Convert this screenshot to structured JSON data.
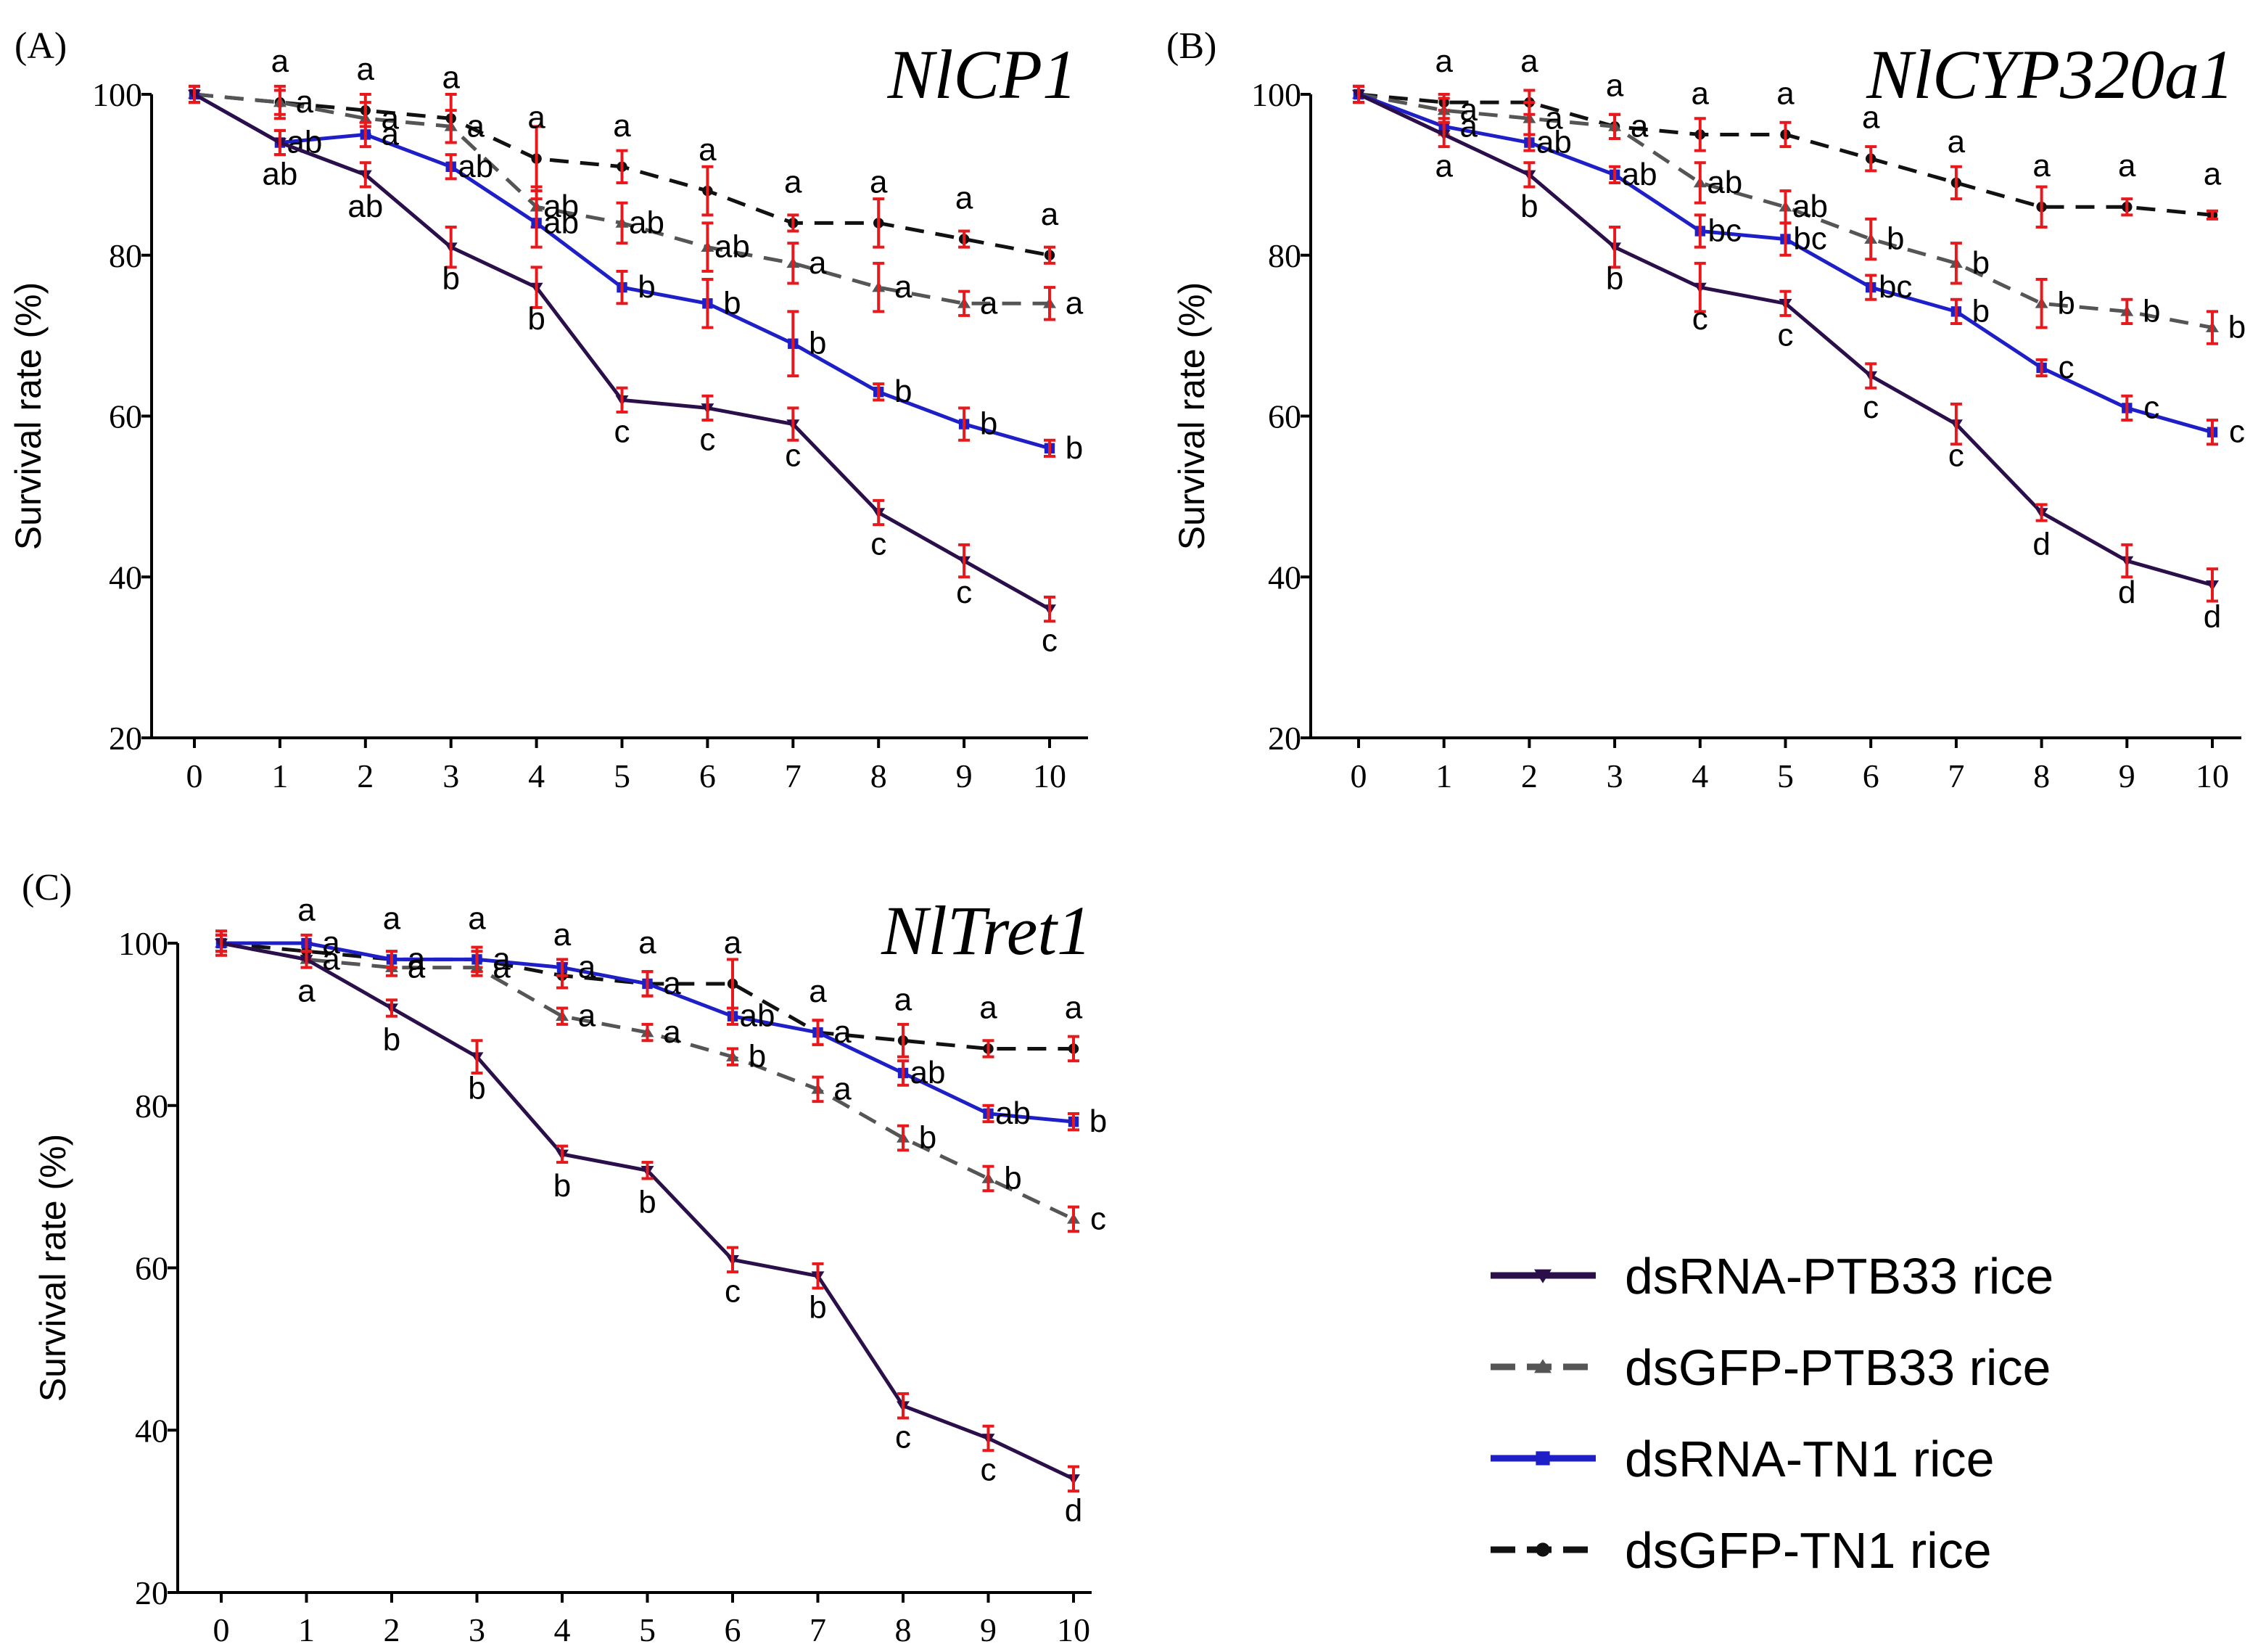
{
  "series_style": {
    "dsRNA-PTB33": {
      "color": "#2a0f4a",
      "dash": "",
      "marker": "triangle-down"
    },
    "dsGFP-PTB33": {
      "color": "#555555",
      "dash": "26,16",
      "marker": "triangle-up"
    },
    "dsRNA-TN1": {
      "color": "#1f1fc8",
      "dash": "",
      "marker": "square"
    },
    "dsGFP-TN1": {
      "color": "#111111",
      "dash": "26,16",
      "marker": "circle"
    }
  },
  "error_bar_color": "#e8191c",
  "legend": {
    "items": [
      {
        "key": "dsRNA-PTB33",
        "label": "dsRNA-PTB33 rice"
      },
      {
        "key": "dsGFP-PTB33",
        "label": "dsGFP-PTB33 rice"
      },
      {
        "key": "dsRNA-TN1",
        "label": "dsRNA-TN1 rice"
      },
      {
        "key": "dsGFP-TN1",
        "label": "dsGFP-TN1 rice"
      }
    ]
  },
  "chart_data": [
    {
      "type": "line",
      "panel": "(A)",
      "title": "NlCP1",
      "ylabel": "Survival rate (%)",
      "xlabel": "",
      "x": [
        0,
        1,
        2,
        3,
        4,
        5,
        6,
        7,
        8,
        9,
        10
      ],
      "xticks": [
        "0",
        "1",
        "2",
        "3",
        "4",
        "5",
        "6",
        "7",
        "8",
        "9",
        "10"
      ],
      "ylim": [
        20,
        100
      ],
      "yticks": [
        "20",
        "40",
        "60",
        "80",
        "100"
      ],
      "series": [
        {
          "key": "dsRNA-PTB33",
          "name": "dsRNA-PTB33 rice",
          "values": [
            100,
            94,
            90,
            81,
            76,
            62,
            61,
            59,
            48,
            42,
            36
          ],
          "errors": [
            1,
            1.5,
            1.5,
            2.5,
            2.5,
            1.5,
            1.5,
            2,
            1.5,
            2,
            1.5
          ],
          "letters": [
            "",
            "ab",
            "ab",
            "b",
            "b",
            "c",
            "c",
            "c",
            "c",
            "c",
            "c"
          ]
        },
        {
          "key": "dsGFP-PTB33",
          "name": "dsGFP-PTB33 rice",
          "values": [
            100,
            99,
            97,
            96,
            86,
            84,
            81,
            79,
            76,
            74,
            74
          ],
          "errors": [
            1,
            1.5,
            2,
            2,
            2.5,
            2.5,
            3,
            2.5,
            3,
            1.5,
            2
          ],
          "letters": [
            "",
            "a",
            "a",
            "a",
            "ab",
            "ab",
            "ab",
            "a",
            "a",
            "a",
            "a"
          ]
        },
        {
          "key": "dsRNA-TN1",
          "name": "dsRNA-TN1 rice",
          "values": [
            100,
            94,
            95,
            91,
            84,
            76,
            74,
            69,
            63,
            59,
            56
          ],
          "errors": [
            1,
            1.5,
            1.5,
            1.5,
            3,
            2,
            3,
            4,
            1,
            2,
            1
          ],
          "letters": [
            "",
            "ab",
            "a",
            "ab",
            "ab",
            "b",
            "b",
            "b",
            "b",
            "b",
            "b"
          ]
        },
        {
          "key": "dsGFP-TN1",
          "name": "dsGFP-TN1 rice",
          "values": [
            100,
            99,
            98,
            97,
            92,
            91,
            88,
            84,
            84,
            82,
            80
          ],
          "errors": [
            1,
            2,
            2,
            3,
            4,
            2,
            3,
            1,
            3,
            1,
            1
          ],
          "letters": [
            "",
            "a",
            "a",
            "a",
            "a",
            "a",
            "a",
            "a",
            "a",
            "a",
            "a"
          ]
        }
      ]
    },
    {
      "type": "line",
      "panel": "(B)",
      "title": "NlCYP320a1",
      "ylabel": "Survival rate (%)",
      "xlabel": "",
      "x": [
        0,
        1,
        2,
        3,
        4,
        5,
        6,
        7,
        8,
        9,
        10
      ],
      "xticks": [
        "0",
        "1",
        "2",
        "3",
        "4",
        "5",
        "6",
        "7",
        "8",
        "9",
        "10"
      ],
      "ylim": [
        20,
        100
      ],
      "yticks": [
        "20",
        "40",
        "60",
        "80",
        "100"
      ],
      "series": [
        {
          "key": "dsRNA-PTB33",
          "name": "dsRNA-PTB33 rice",
          "values": [
            100,
            95,
            90,
            81,
            76,
            74,
            65,
            59,
            48,
            42,
            39
          ],
          "errors": [
            1,
            1.5,
            1.5,
            2.5,
            3,
            1.5,
            1.5,
            2.5,
            1,
            2,
            2
          ],
          "letters": [
            "",
            "a",
            "b",
            "b",
            "c",
            "c",
            "c",
            "c",
            "d",
            "d",
            "d"
          ]
        },
        {
          "key": "dsGFP-PTB33",
          "name": "dsGFP-PTB33 rice",
          "values": [
            100,
            98,
            97,
            96,
            89,
            86,
            82,
            79,
            74,
            73,
            71
          ],
          "errors": [
            1,
            1.5,
            2,
            1.5,
            2.5,
            2,
            2.5,
            2.5,
            3,
            1.5,
            2
          ],
          "letters": [
            "",
            "a",
            "a",
            "a",
            "ab",
            "ab",
            "b",
            "b",
            "b",
            "b",
            "b"
          ]
        },
        {
          "key": "dsRNA-TN1",
          "name": "dsRNA-TN1 rice",
          "values": [
            100,
            96,
            94,
            90,
            83,
            82,
            76,
            73,
            66,
            61,
            58
          ],
          "errors": [
            1,
            1,
            1,
            1,
            2,
            2,
            1.5,
            1.5,
            1,
            1.5,
            1.5
          ],
          "letters": [
            "",
            "a",
            "ab",
            "ab",
            "bc",
            "bc",
            "bc",
            "b",
            "c",
            "c",
            "c"
          ]
        },
        {
          "key": "dsGFP-TN1",
          "name": "dsGFP-TN1 rice",
          "values": [
            100,
            99,
            99,
            96,
            95,
            95,
            92,
            89,
            86,
            86,
            85
          ],
          "errors": [
            1,
            1,
            1.5,
            1.5,
            2,
            1.5,
            1.5,
            2,
            2.5,
            1,
            0.5
          ],
          "letters": [
            "",
            "a",
            "a",
            "a",
            "a",
            "a",
            "a",
            "a",
            "a",
            "a",
            "a"
          ]
        }
      ]
    },
    {
      "type": "line",
      "panel": "(C)",
      "title": "NlTret1",
      "ylabel": "Survival rate (%)",
      "xlabel": "",
      "x": [
        0,
        1,
        2,
        3,
        4,
        5,
        6,
        7,
        8,
        9,
        10
      ],
      "xticks": [
        "0",
        "1",
        "2",
        "3",
        "4",
        "5",
        "6",
        "7",
        "8",
        "9",
        "10"
      ],
      "ylim": [
        20,
        100
      ],
      "yticks": [
        "20",
        "40",
        "60",
        "80",
        "100"
      ],
      "series": [
        {
          "key": "dsRNA-PTB33",
          "name": "dsRNA-PTB33 rice",
          "values": [
            100,
            98,
            92,
            86,
            74,
            72,
            61,
            59,
            43,
            39,
            34
          ],
          "errors": [
            1,
            1,
            1,
            2,
            1,
            1,
            1.5,
            1.5,
            1.5,
            1.5,
            1.5
          ],
          "letters": [
            "",
            "a",
            "b",
            "b",
            "b",
            "b",
            "c",
            "b",
            "c",
            "c",
            "d"
          ]
        },
        {
          "key": "dsGFP-PTB33",
          "name": "dsGFP-PTB33 rice",
          "values": [
            100,
            98,
            97,
            97,
            91,
            89,
            86,
            82,
            76,
            71,
            66
          ],
          "errors": [
            1,
            1,
            1,
            1,
            1,
            1,
            1,
            1.5,
            1.5,
            1.5,
            1.5
          ],
          "letters": [
            "",
            "a",
            "a",
            "a",
            "a",
            "a",
            "b",
            "a",
            "b",
            "b",
            "c"
          ]
        },
        {
          "key": "dsRNA-TN1",
          "name": "dsRNA-TN1 rice",
          "values": [
            100,
            100,
            98,
            98,
            97,
            95,
            91,
            89,
            84,
            79,
            78
          ],
          "errors": [
            1,
            1,
            1,
            1.5,
            1,
            1.5,
            1,
            1.5,
            1.5,
            1,
            1
          ],
          "letters": [
            "",
            "a",
            "a",
            "a",
            "a",
            "a",
            "ab",
            "a",
            "ab",
            "ab",
            "b"
          ]
        },
        {
          "key": "dsGFP-TN1",
          "name": "dsGFP-TN1 rice",
          "values": [
            100,
            99,
            98,
            98,
            96,
            95,
            95,
            89,
            88,
            87,
            87
          ],
          "errors": [
            1.5,
            1,
            1,
            1,
            1.5,
            1.5,
            3,
            1.5,
            2,
            1,
            1.5
          ],
          "letters": [
            "",
            "a",
            "a",
            "a",
            "a",
            "a",
            "a",
            "a",
            "a",
            "a",
            "a"
          ]
        }
      ]
    }
  ]
}
